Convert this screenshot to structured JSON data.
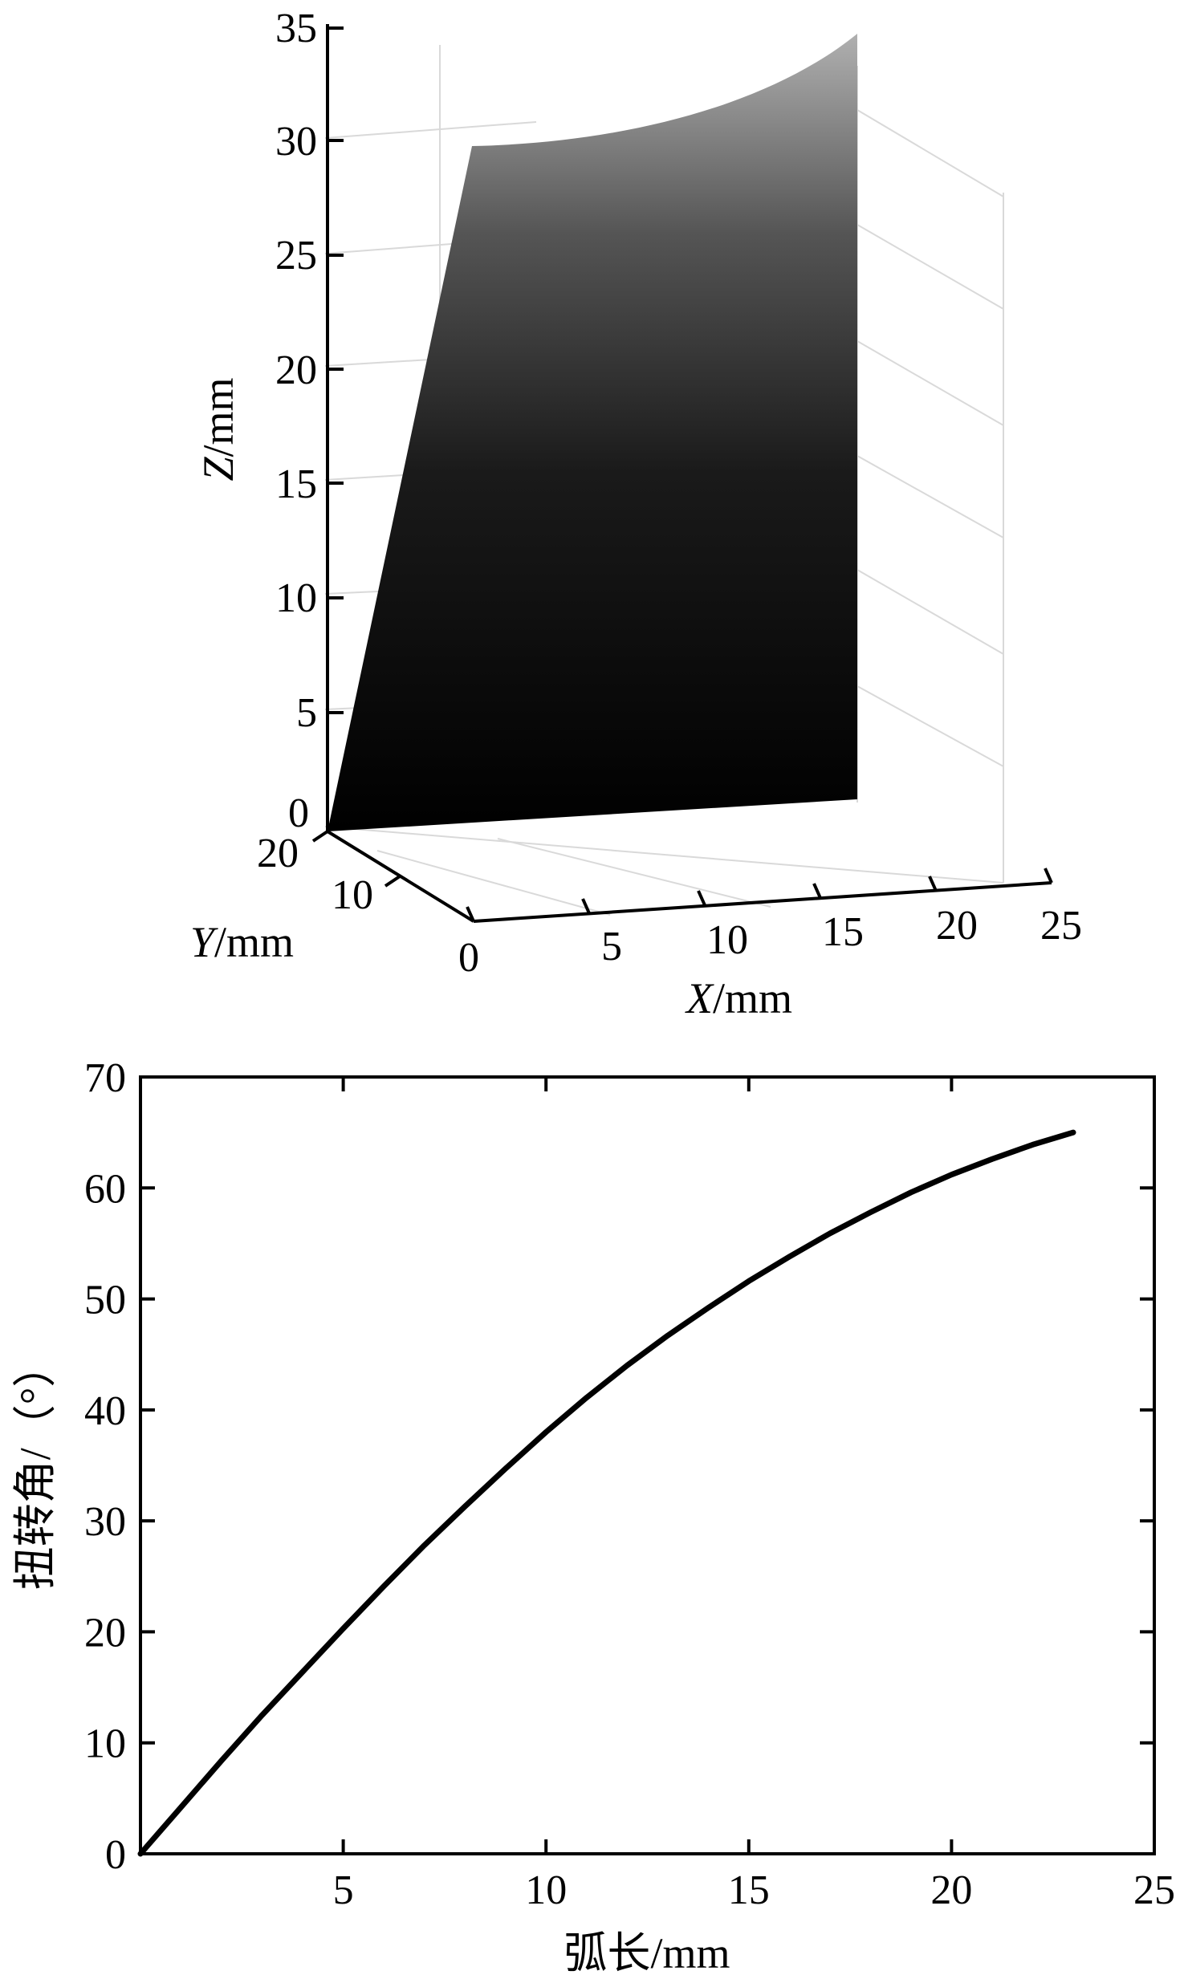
{
  "chart_data": [
    {
      "type": "surface3d",
      "zlabel": "Z/mm",
      "ylabel": "Y/mm",
      "xlabel": "X/mm",
      "ylabel_parts": [
        "Y",
        "/mm"
      ],
      "xlabel_parts": [
        "X",
        "/mm"
      ],
      "zlabel_parts": [
        "Z",
        "/mm"
      ],
      "x_ticks": [
        "0",
        "5",
        "10",
        "15",
        "20",
        "25"
      ],
      "y_ticks": [
        "10",
        "20"
      ],
      "z_ticks": [
        "0",
        "5",
        "10",
        "15",
        "20",
        "25",
        "30",
        "35"
      ],
      "xlim": [
        0,
        25
      ],
      "ylim": [
        0,
        20
      ],
      "zlim": [
        0,
        35
      ],
      "grid": true,
      "colormap": "gray (dark at bottom, light at top)"
    },
    {
      "type": "line",
      "xlabel": "弧长/mm",
      "ylabel": "扭转角/（°）",
      "xlim": [
        0,
        25
      ],
      "ylim": [
        0,
        70
      ],
      "x_ticks": [
        "5",
        "10",
        "15",
        "20",
        "25"
      ],
      "y_ticks": [
        "0",
        "10",
        "20",
        "30",
        "40",
        "50",
        "60",
        "70"
      ],
      "grid": false,
      "series": [
        {
          "color": "#000000",
          "x": [
            0,
            1,
            2,
            3,
            4,
            5,
            6,
            7,
            8,
            9,
            10,
            11,
            12,
            13,
            14,
            15,
            16,
            17,
            18,
            19,
            20,
            21,
            22,
            23
          ],
          "y": [
            0,
            4.2,
            8.4,
            12.5,
            16.4,
            20.3,
            24.1,
            27.8,
            31.3,
            34.7,
            38.0,
            41.1,
            44.0,
            46.7,
            49.2,
            51.6,
            53.8,
            55.9,
            57.8,
            59.6,
            61.2,
            62.6,
            63.9,
            65.0
          ]
        }
      ]
    }
  ]
}
